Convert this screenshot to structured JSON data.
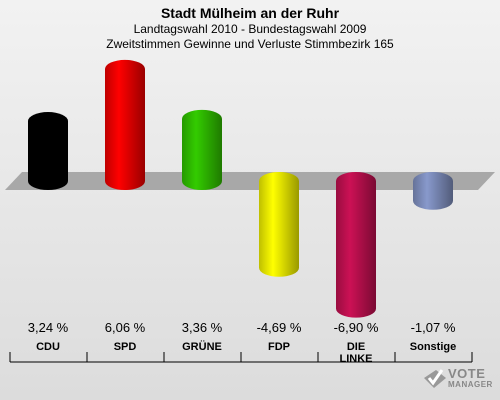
{
  "header": {
    "title": "Stadt Mülheim an der Ruhr",
    "subtitle1": "Landtagswahl 2010 - Bundestagswahl 2009",
    "subtitle2": "Zweitstimmen Gewinne und Verluste Stimmbezirk 165"
  },
  "logo": {
    "word1": "VOTE",
    "word2": "MANAGER"
  },
  "chart_data": {
    "type": "bar",
    "title": "Stadt Mülheim an der Ruhr",
    "categories": [
      "CDU",
      "SPD",
      "GRÜNE",
      "FDP",
      "DIE LINKE",
      "Sonstige"
    ],
    "values": [
      3.24,
      6.06,
      3.36,
      -4.69,
      -6.9,
      -1.07
    ],
    "value_labels": [
      "3,24 %",
      "6,06 %",
      "3,36 %",
      "-4,69 %",
      "-6,90 %",
      "-1,07 %"
    ],
    "colors": [
      "#000000",
      "#ff0000",
      "#33cc00",
      "#ffff00",
      "#cc1155",
      "#8899cc"
    ],
    "ylim": [
      -7.5,
      7.5
    ],
    "grid": false,
    "legend": "none"
  }
}
